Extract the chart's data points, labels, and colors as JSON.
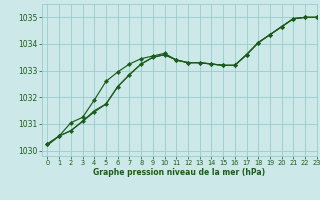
{
  "title": "Graphe pression niveau de la mer (hPa)",
  "background_color": "#cce8e8",
  "grid_color": "#99cccc",
  "line_color": "#1a5c1a",
  "xlim": [
    -0.5,
    23
  ],
  "ylim": [
    1029.8,
    1035.5
  ],
  "yticks": [
    1030,
    1031,
    1032,
    1033,
    1034,
    1035
  ],
  "xticks": [
    0,
    1,
    2,
    3,
    4,
    5,
    6,
    7,
    8,
    9,
    10,
    11,
    12,
    13,
    14,
    15,
    16,
    17,
    18,
    19,
    20,
    21,
    22,
    23
  ],
  "series_steady_x": [
    0,
    1,
    2,
    3,
    4,
    5,
    6,
    7,
    8,
    9,
    10,
    11,
    12,
    13,
    14,
    15,
    16,
    17,
    18,
    19,
    20,
    21,
    22,
    23
  ],
  "series_steady_y": [
    1030.25,
    1030.55,
    1030.75,
    1031.1,
    1031.45,
    1031.75,
    1032.4,
    1032.85,
    1033.25,
    1033.5,
    1033.6,
    1033.4,
    1033.3,
    1033.3,
    1033.25,
    1033.2,
    1033.2,
    1033.6,
    1034.05,
    1034.35,
    1034.65,
    1034.95,
    1035.0,
    1035.0
  ],
  "series_hump_x": [
    0,
    1,
    2,
    3,
    4,
    5,
    6,
    7,
    8,
    9,
    10,
    11,
    12,
    13,
    14,
    15,
    16,
    17,
    18,
    19,
    20,
    21,
    22,
    23
  ],
  "series_hump_y": [
    1030.25,
    1030.55,
    1031.05,
    1031.25,
    1031.9,
    1032.6,
    1032.95,
    1033.25,
    1033.45,
    1033.55,
    1033.65,
    1033.4,
    1033.3,
    1033.3,
    1033.25,
    1033.2,
    1033.2,
    1033.6,
    1034.05,
    1034.35,
    1034.65,
    1034.95,
    1035.0,
    1035.0
  ],
  "series_smooth_x": [
    0,
    1,
    2,
    3,
    4,
    5,
    6,
    7,
    8,
    9,
    10,
    11,
    12,
    13,
    14,
    15,
    16,
    17,
    18,
    19,
    20,
    21,
    22,
    23
  ],
  "series_smooth_y": [
    1030.2,
    1030.55,
    1030.75,
    1031.1,
    1031.5,
    1031.75,
    1032.4,
    1032.85,
    1033.25,
    1033.5,
    1033.6,
    1033.4,
    1033.3,
    1033.3,
    1033.25,
    1033.2,
    1033.2,
    1033.6,
    1034.05,
    1034.35,
    1034.65,
    1034.95,
    1035.0,
    1035.0
  ]
}
